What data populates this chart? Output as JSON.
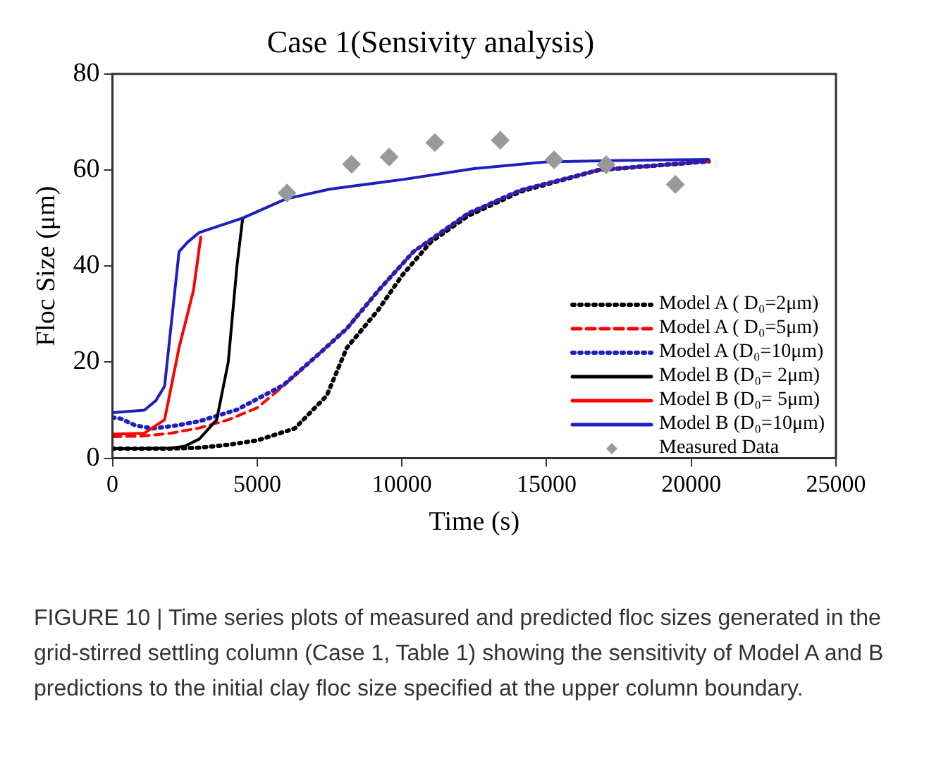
{
  "chart_data": {
    "type": "line",
    "title": "Case 1(Sensivity analysis)",
    "xlabel": "Time (s)",
    "ylabel": "Floc Size (μm)",
    "xlim": [
      0,
      25000
    ],
    "xticks": [
      0,
      5000,
      10000,
      15000,
      20000,
      25000
    ],
    "ylim": [
      0,
      80
    ],
    "yticks": [
      0,
      20,
      40,
      60,
      80
    ],
    "grid": false,
    "legend": "bottom right",
    "series": [
      {
        "name": "Model A ( D₀=2μm)",
        "color": "#000000",
        "line_style": "dotted",
        "marker": "none",
        "x": [
          0,
          1000,
          2000,
          3000,
          4000,
          5000,
          6300,
          7400,
          8100,
          9200,
          10000,
          11000,
          12300,
          14100,
          16800,
          20600
        ],
        "values": [
          2,
          2,
          2,
          2.2,
          2.8,
          3.7,
          6.2,
          13,
          23,
          31,
          38,
          45,
          50.5,
          55.5,
          60,
          61.8
        ]
      },
      {
        "name": "Model A ( D₀=5μm)",
        "color": "#ff0000",
        "line_style": "dashed",
        "marker": "none",
        "x": [
          0,
          1000,
          2000,
          3000,
          4000,
          5000,
          5900,
          7000,
          8100,
          9200,
          10400,
          12300,
          14100,
          16800,
          20600
        ],
        "values": [
          4.5,
          4.6,
          5.2,
          6.3,
          8,
          10.5,
          15,
          21,
          27,
          35,
          43,
          51,
          55.8,
          60,
          61.8
        ]
      },
      {
        "name": "Model A (D₀=10μm)",
        "color": "#1f1fbf",
        "line_style": "dotted",
        "marker": "none",
        "x": [
          0,
          300,
          800,
          1400,
          2200,
          3000,
          4300,
          5900,
          7000,
          8100,
          9200,
          10400,
          12300,
          14100,
          16800,
          20600
        ],
        "values": [
          8.5,
          8.2,
          6.8,
          6.2,
          6.8,
          7.7,
          10.1,
          15.2,
          21,
          27,
          35,
          43,
          51,
          55.8,
          60,
          61.8
        ]
      },
      {
        "name": "Model B (D₀= 2μm)",
        "color": "#000000",
        "line_style": "solid",
        "marker": "none",
        "x": [
          0,
          1000,
          2000,
          2500,
          3000,
          3600,
          4000,
          4300,
          4500
        ],
        "values": [
          2,
          2,
          2.1,
          2.5,
          4,
          8,
          20,
          40,
          50
        ]
      },
      {
        "name": "Model B (D₀= 5μm)",
        "color": "#ff0000",
        "line_style": "solid",
        "marker": "none",
        "x": [
          0,
          1100,
          1800,
          2300,
          2800,
          3050
        ],
        "values": [
          5,
          5.2,
          8,
          23,
          35,
          46
        ]
      },
      {
        "name": "Model B (D₀=10μm)",
        "color": "#1f1fbf",
        "line_style": "solid",
        "marker": "none",
        "x": [
          0,
          1100,
          1500,
          1800,
          2300,
          2600,
          3000,
          4500,
          6000,
          7500,
          10000,
          12500,
          15000,
          17500,
          20600
        ],
        "values": [
          9.5,
          10,
          12,
          15,
          43,
          45,
          47,
          50,
          54,
          56,
          58,
          60.3,
          61.7,
          62,
          62.2
        ]
      },
      {
        "name": "Measured Data",
        "type": "scatter",
        "color": "#999999",
        "marker": "diamond",
        "x": [
          6030,
          8260,
          9560,
          11140,
          13400,
          15260,
          17060,
          19450
        ],
        "values": [
          55.2,
          61.2,
          62.7,
          65.7,
          66.2,
          62.1,
          61.1,
          57
        ]
      }
    ],
    "annotations": [
      "FIGURE 10 | Time series plots of measured and predicted floc sizes generated in the grid-stirred settling column (Case 1, Table 1) showing the sensitivity of Model A and B predictions to the initial clay floc size specified at the upper column boundary."
    ]
  }
}
